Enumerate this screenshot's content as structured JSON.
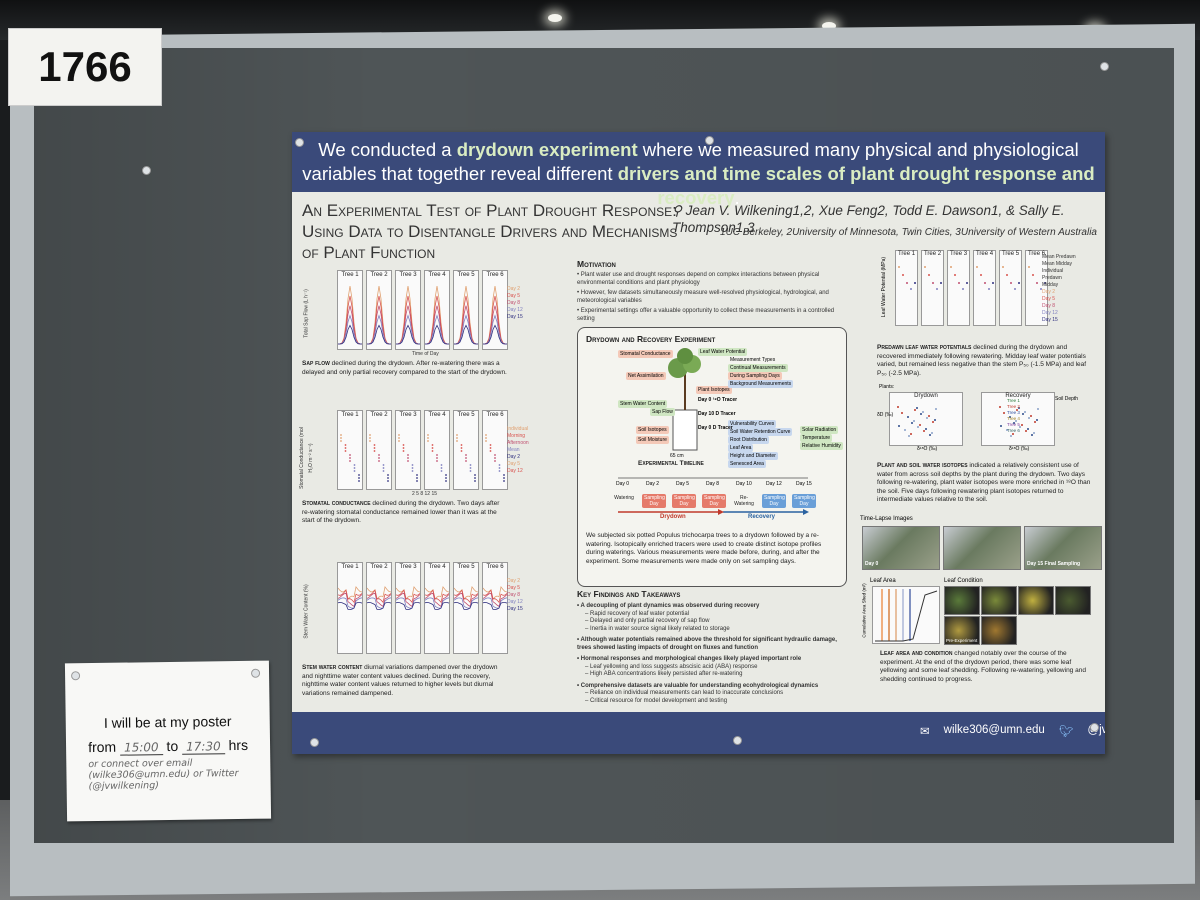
{
  "booth_number": "1766",
  "poster": {
    "banner_parts": [
      {
        "text": "We conducted a ",
        "bold": false
      },
      {
        "text": "drydown experiment",
        "bold": true
      },
      {
        "text": " where we measured many physical and physiological variables that together reveal different ",
        "bold": false
      },
      {
        "text": "drivers and time scales of plant drought response and recovery",
        "bold": true
      },
      {
        "text": ".",
        "bold": false
      }
    ],
    "title_lines": [
      "An Experimental Test of Plant Drought Response:",
      "Using Data to Disentangle Drivers and Mechanisms",
      "of Plant Function"
    ],
    "authors": "Jean V. Wilkening1,2, Xue Feng2, Todd E. Dawson1, & Sally E. Thompson1,3",
    "affiliations": "1UC Berkeley, 2University of Minnesota, Twin Cities, 3University of Western Australia",
    "left_figures": [
      {
        "trees": [
          "Tree 1",
          "Tree 2",
          "Tree 3",
          "Tree 4",
          "Tree 5",
          "Tree 6"
        ],
        "ylabel": "Total Sap Flow (L h⁻¹)",
        "xlabel": "Time of Day",
        "legend": [
          "Day 2",
          "Day 5",
          "Day 8",
          "Day 12",
          "Day 15"
        ],
        "caption_bold": "Sap flow",
        "caption": " declined during the drydown. After re-watering there was a delayed and only partial recovery compared to the start of the drydown."
      },
      {
        "trees": [
          "Tree 1",
          "Tree 2",
          "Tree 3",
          "Tree 4",
          "Tree 5",
          "Tree 6"
        ],
        "ylabel": "Stomatal Conductance (mol H₂O m⁻² s⁻¹)",
        "xlabel": "2 5 8 12 15",
        "legend": [
          "Individual",
          "Morning",
          "Afternoon",
          "Mean",
          "Day 2",
          "Day 5",
          "Day 12"
        ],
        "caption_bold": "Stomatal conductance",
        "caption": " declined during the drydown. Two days after re-watering stomatal conductance remained lower than it was at the start of the drydown."
      },
      {
        "trees": [
          "Tree 1",
          "Tree 2",
          "Tree 3",
          "Tree 4",
          "Tree 5",
          "Tree 6"
        ],
        "ylabel": "Stem Water Content (%)",
        "xlabel": "",
        "legend": [
          "Day 2",
          "Day 5",
          "Day 8",
          "Day 12",
          "Day 15"
        ],
        "caption_bold": "Stem water content",
        "caption": " diurnal variations dampened over the drydown and nighttime water content values declined. During the recovery, nighttime water content values returned to higher levels but diurnal variations remained dampened."
      }
    ],
    "motivation": {
      "heading": "Motivation",
      "bullets": [
        "Plant water use and drought responses depend on complex interactions between physical environmental conditions and plant physiology",
        "However, few datasets simultaneously measure well-resolved physiological, hydrological, and meteorological variables",
        "Experimental settings offer a valuable opportunity to collect these measurements in a controlled setting"
      ]
    },
    "experiment": {
      "heading": "Drydown and Recovery Experiment",
      "labels_left": [
        "Stomatal Conductance",
        "Net Assimilation",
        "Stem Water Content",
        "Sap Flow",
        "Soil Isotopes",
        "Soil Moisture"
      ],
      "labels_right": [
        "Leaf Water Potential",
        "Plant Isotopes",
        "Measurement Types",
        "Continual Measurements",
        "During Sampling Days",
        "Background Measurements",
        "Vulnerability Curves",
        "Soil Water Retention Curve",
        "Root Distribution",
        "Leaf Area",
        "Height and Diameter",
        "Senesced Area",
        "Solar Radiation",
        "Temperature",
        "Relative Humidity"
      ],
      "day_tags": [
        "Day 0 ¹⁸O Tracer",
        "Day 10 D Tracer",
        "Day 0 D Tracer"
      ],
      "pot_label": "65 cm",
      "timeline_heading": "Experimental Timeline",
      "timeline_days": [
        "Day 0",
        "Day 2",
        "Day 5",
        "Day 8",
        "Day 10",
        "Day 12",
        "Day 15"
      ],
      "timeline_stages": [
        "Watering",
        "Sampling Day",
        "Sampling Day",
        "Sampling Day",
        "Re-Watering",
        "Sampling Day",
        "Sampling Day"
      ],
      "phase_drydown": "Drydown",
      "phase_recovery": "Recovery",
      "description": "We subjected six potted Populus trichocarpa trees to a drydown followed by a re-watering. Isotopically enriched tracers were used to create distinct isotope profiles during waterings. Various measurements were made before, during, and after the experiment. Some measurements were made only on set sampling days."
    },
    "findings": {
      "heading": "Key Findings and Takeaways",
      "items": [
        {
          "text": "A decoupling of plant dynamics was observed during recovery",
          "subs": [
            "Rapid recovery of leaf water potential",
            "Delayed and only partial recovery of sap flow",
            "Inertia in water source signal likely related to storage"
          ]
        },
        {
          "text": "Although water potentials remained above the threshold for significant hydraulic damage, trees showed lasting impacts of drought on fluxes and function",
          "subs": []
        },
        {
          "text": "Hormonal responses and morphological changes likely played important role",
          "subs": [
            "Leaf yellowing and loss suggests abscisic acid (ABA) response",
            "High ABA concentrations likely persisted after re-watering"
          ]
        },
        {
          "text": "Comprehensive datasets are valuable for understanding ecohydrological dynamics",
          "subs": [
            "Reliance on individual measurements can lead to inaccurate conclusions",
            "Critical resource for model development and testing"
          ]
        }
      ]
    },
    "right_figures": {
      "water_potential": {
        "trees": [
          "Tree 1",
          "Tree 2",
          "Tree 3",
          "Tree 4",
          "Tree 5",
          "Tree 6"
        ],
        "ylabel": "Leaf Water Potential (MPa)",
        "legend": [
          "Mean Predawn",
          "Mean Midday",
          "Individual",
          "Predawn",
          "Midday",
          "Day 2",
          "Day 5",
          "Day 8",
          "Day 12",
          "Day 15"
        ],
        "caption_bold": "Predawn leaf water potentials",
        "caption": " declined during the drydown and recovered immediately following rewatering. Midday leaf water potentials varied, but remained less negative than the stem P₅₀ (-1.5 MPa) and leaf P₅₀ (-2.5 MPa)."
      },
      "isotopes": {
        "panel_titles": [
          "Drydown",
          "Recovery"
        ],
        "xlabel": "δ¹⁸O (‰)",
        "ylabel": "δD (‰)",
        "legend_plants": "Plants:",
        "soil_depth_label": "Soil Depth",
        "trees": [
          "Tree 1",
          "Tree 2",
          "Tree 3",
          "Tree 4",
          "Tree 5",
          "Tree 6"
        ],
        "caption_bold": "Plant and soil water isotopes",
        "caption": " indicated a relatively consistent use of water from across soil depths by the plant during the drydown. Two days following re-watering, plant water isotopes were more enriched in ¹⁸O than the soil. Five days following rewatering plant isotopes returned to intermediate values relative to the soil."
      },
      "timelapse": {
        "heading": "Time-Lapse Images",
        "frames": [
          "Day 0",
          "",
          "Day 15 Final Sampling"
        ]
      },
      "leaf": {
        "area_heading": "Leaf Area",
        "area_ylabel": "Cumulative Area Shed (m²)",
        "condition_heading": "Leaf Condition",
        "condition_tag": "Pre-Experiment",
        "caption_bold": "Leaf area and condition",
        "caption": " changed notably over the course of the experiment. At the end of the drydown period, there was some leaf yellowing and some leaf shedding. Following re-watering, yellowing and shedding continued to progress."
      }
    },
    "footer": {
      "email": "wilke306@umn.edu",
      "twitter": "@jvwilkening"
    }
  },
  "note": {
    "line1": "I will be at my poster",
    "from_label": "from",
    "from_time": "15:00",
    "to_label": "to",
    "to_time": "17:30",
    "hrs_label": "hrs",
    "handwritten": [
      "or connect over email",
      "(wilke306@umn.edu) or Twitter",
      "(@jvwilkening)"
    ]
  },
  "colors": {
    "banner": "#3a4a7a",
    "board": "#4f5557",
    "series": [
      "#e0a070",
      "#d9534f",
      "#c05070",
      "#8080c0",
      "#303080"
    ]
  }
}
